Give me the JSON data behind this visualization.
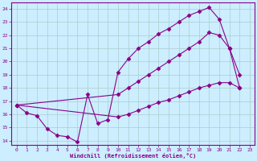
{
  "background_color": "#cceeff",
  "line_color": "#880088",
  "grid_color": "#aacccc",
  "ylim": [
    13.7,
    24.5
  ],
  "xlim": [
    -0.5,
    23.5
  ],
  "yticks": [
    14,
    15,
    16,
    17,
    18,
    19,
    20,
    21,
    22,
    23,
    24
  ],
  "xticks": [
    0,
    1,
    2,
    3,
    4,
    5,
    6,
    7,
    8,
    9,
    10,
    11,
    12,
    13,
    14,
    15,
    16,
    17,
    18,
    19,
    20,
    21,
    22,
    23
  ],
  "line1_x": [
    0,
    1,
    2,
    3,
    4,
    5,
    6,
    7,
    8,
    9,
    10,
    11,
    12,
    13,
    14,
    15,
    16,
    17,
    18,
    19,
    20,
    21,
    22
  ],
  "line1_y": [
    16.7,
    16.1,
    15.9,
    14.9,
    14.4,
    14.3,
    13.9,
    17.5,
    15.3,
    15.6,
    19.2,
    20.2,
    21.0,
    21.5,
    22.1,
    22.5,
    23.0,
    23.5,
    23.8,
    24.1,
    23.2,
    21.0,
    18.0
  ],
  "line2_x": [
    0,
    10,
    11,
    12,
    13,
    14,
    15,
    16,
    17,
    18,
    19,
    20,
    21,
    22
  ],
  "line2_y": [
    16.7,
    17.5,
    18.0,
    18.5,
    19.0,
    19.5,
    20.0,
    20.5,
    21.0,
    21.5,
    22.2,
    22.0,
    21.0,
    19.0
  ],
  "line3_x": [
    0,
    10,
    11,
    12,
    13,
    14,
    15,
    16,
    17,
    18,
    19,
    20,
    21,
    22
  ],
  "line3_y": [
    16.7,
    15.8,
    16.0,
    16.3,
    16.6,
    16.9,
    17.1,
    17.4,
    17.7,
    18.0,
    18.2,
    18.4,
    18.4,
    18.0
  ]
}
